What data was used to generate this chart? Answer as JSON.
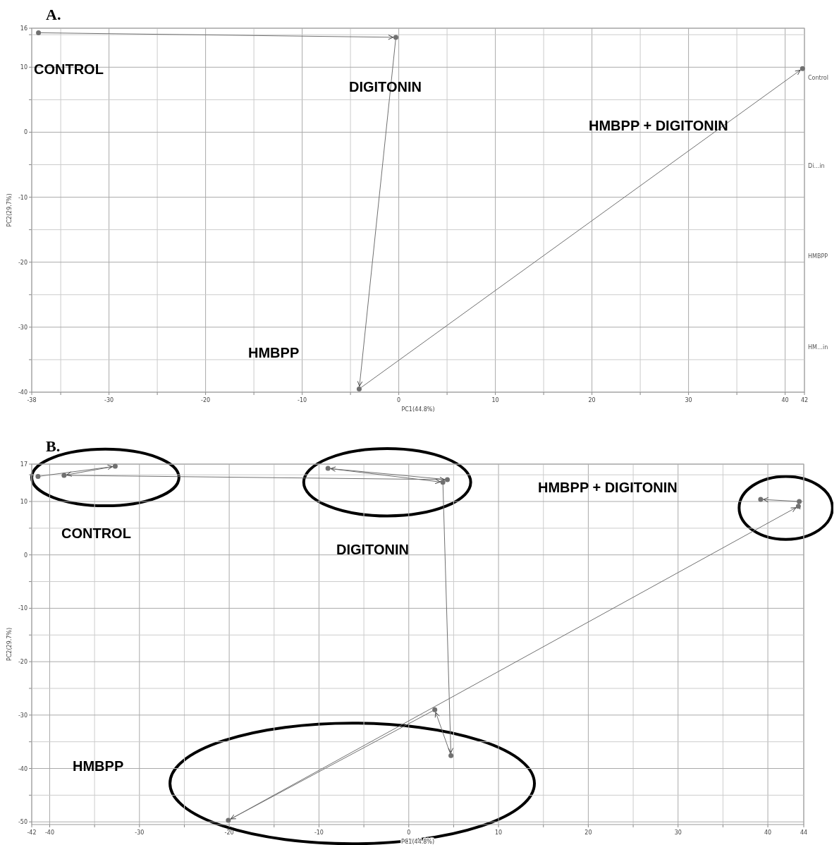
{
  "chart_data": [
    {
      "type": "line",
      "title": "A.",
      "xlabel": "PC1(44.8%)",
      "ylabel": "PC2(29.7%)",
      "marker": "circle",
      "grid": true,
      "xlim": [
        -38,
        42
      ],
      "xticks": [
        -38,
        {
          "value": -35,
          "label": null
        },
        -30,
        {
          "value": -25,
          "label": null
        },
        -20,
        {
          "value": -15,
          "label": null
        },
        -10,
        {
          "value": -5,
          "label": null
        },
        0,
        {
          "value": 5,
          "label": null
        },
        10,
        {
          "value": 15,
          "label": null
        },
        20,
        {
          "value": 25,
          "label": null
        },
        30,
        {
          "value": 35,
          "label": null
        },
        40,
        42
      ],
      "ylim": [
        -40,
        16
      ],
      "yticks": [
        -40,
        {
          "value": -35,
          "label": null
        },
        -30,
        {
          "value": -25,
          "label": null
        },
        -20,
        {
          "value": -15,
          "label": null
        },
        -10,
        {
          "value": -5,
          "label": null
        },
        0,
        {
          "value": 5,
          "label": null
        },
        10,
        {
          "value": 15,
          "label": null
        },
        16
      ],
      "series": [
        {
          "color": "#707070",
          "x": [
            -37.3,
            -0.3,
            -4.1,
            41.8
          ],
          "values": [
            15.3,
            14.6,
            -39.5,
            9.8
          ]
        }
      ],
      "annotations": [
        "CONTROL",
        "DIGITONIN",
        "HMBPP + DIGITONIN",
        "HMBPP",
        "Control",
        "Di…in",
        "HMBPP",
        "HM…in"
      ]
    },
    {
      "type": "line",
      "title": "B.",
      "xlabel": "PC1(44.8%)",
      "ylabel": "PC2(29.7%)",
      "marker": "circle",
      "grid": true,
      "xlim": [
        -42,
        44
      ],
      "xticks": [
        -42,
        -40,
        {
          "value": -35,
          "label": null
        },
        -30,
        {
          "value": -25,
          "label": null
        },
        -20,
        {
          "value": -15,
          "label": null
        },
        -10,
        {
          "value": -5,
          "label": null
        },
        0,
        {
          "value": 5,
          "label": null
        },
        10,
        {
          "value": 15,
          "label": null
        },
        20,
        {
          "value": 25,
          "label": null
        },
        30,
        {
          "value": 35,
          "label": null
        },
        40,
        44
      ],
      "ylim": [
        -50.5,
        17
      ],
      "yticks": [
        -50,
        {
          "value": -45,
          "label": null
        },
        -40,
        {
          "value": -35,
          "label": null
        },
        -30,
        {
          "value": -25,
          "label": null
        },
        -20,
        {
          "value": -15,
          "label": null
        },
        -10,
        {
          "value": -5,
          "label": null
        },
        0,
        {
          "value": 5,
          "label": null
        },
        10,
        {
          "value": 15,
          "label": null
        },
        17
      ],
      "series": [
        {
          "color": "#707070",
          "x": [
            -41.3,
            -32.7,
            -38.4,
            4.3,
            -9.0,
            3.8,
            4.7,
            2.9,
            -20.1,
            43.4,
            43.5,
            39.2
          ],
          "values": [
            14.7,
            16.6,
            14.9,
            14.1,
            16.2,
            13.6,
            -37.6,
            -29.0,
            -49.7,
            9.1,
            10.0,
            10.4
          ]
        }
      ],
      "annotations": [
        "CONTROL",
        "DIGITONIN",
        "HMBPP + DIGITONIN",
        "HMBPP"
      ]
    }
  ]
}
